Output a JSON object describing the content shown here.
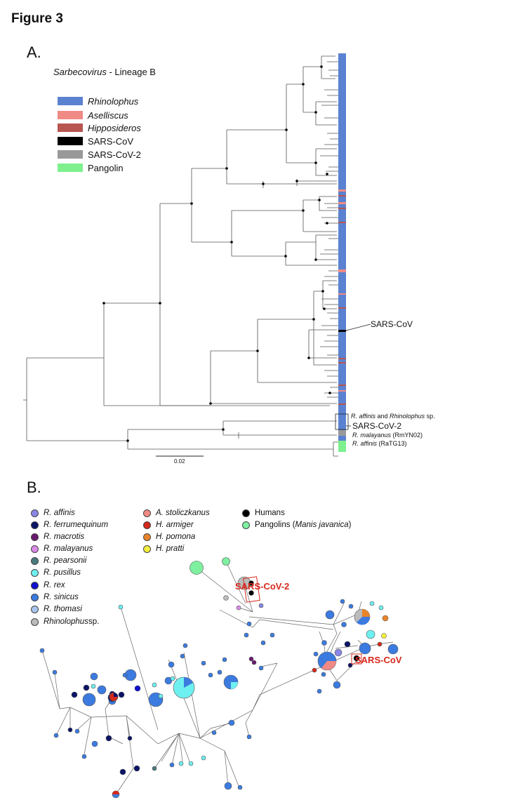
{
  "figure_title": "Figure 3",
  "panel_a": {
    "letter": "A.",
    "title_italic": "Sarbecovirus",
    "title_rest": " - Lineage B",
    "legend": [
      {
        "label": "Rhinolophus",
        "italic": true,
        "color": "#5b82d0"
      },
      {
        "label": "Aselliscus",
        "italic": true,
        "color": "#f08a85"
      },
      {
        "label": "Hipposideros",
        "italic": true,
        "color": "#b85550"
      },
      {
        "label": "SARS-CoV",
        "italic": false,
        "color": "#000000"
      },
      {
        "label": "SARS-CoV-2",
        "italic": false,
        "color": "#999999"
      },
      {
        "label": "Pangolin",
        "italic": false,
        "color": "#7ef08e"
      }
    ],
    "annotations": {
      "sars_cov": "SARS-CoV",
      "r_affinis_rhino_1": "R. affinis",
      "r_affinis_rhino_2": " and ",
      "r_affinis_rhino_3": "Rhinolophus",
      "r_affinis_rhino_4": " sp.",
      "sars_cov_2": "SARS-CoV-2",
      "r_malayanus_1": "R. malayanus",
      "r_malayanus_2": " (RmYN02)",
      "r_affinis_ratg_1": "R. affinis",
      "r_affinis_ratg_2": " (RaTG13)"
    },
    "scale_bar": "0.02"
  },
  "panel_b": {
    "letter": "B.",
    "legend_col1": [
      {
        "label": "R. affinis",
        "color": "#8a86e6"
      },
      {
        "label": "R. ferrumequinum",
        "color": "#0c1466"
      },
      {
        "label": "R. macrotis",
        "color": "#6a1a6e"
      },
      {
        "label": "R. malayanus",
        "color": "#d98be6"
      },
      {
        "label": "R. pearsonii",
        "color": "#4a7a7e"
      },
      {
        "label": "R. pusillus",
        "color": "#6ff0f0"
      },
      {
        "label": "R. rex",
        "color": "#1010d0"
      },
      {
        "label": "R. sinicus",
        "color": "#3b7be0"
      },
      {
        "label": "R. thomasi",
        "color": "#a9c6ec"
      }
    ],
    "legend_col1_last": {
      "italic": "Rhinolophus",
      "rest": " sp.",
      "color": "#bbbbbb"
    },
    "legend_col2": [
      {
        "label": "A. stoliczkanus",
        "color": "#f08a85"
      },
      {
        "label": "H. armiger",
        "color": "#d6281c"
      },
      {
        "label": "H. pomona",
        "color": "#e8852a"
      },
      {
        "label": "H. pratti",
        "color": "#f5f03c"
      }
    ],
    "legend_col3": [
      {
        "label": "Humans",
        "color": "#000000"
      },
      {
        "label_plain": "Pangolins (",
        "label_italic": "Manis javanica",
        "label_end": ")",
        "color": "#7ef0a0"
      }
    ],
    "network_labels": {
      "sars_cov_2": "SARS-CoV-2",
      "sars_cov": "SARS-CoV"
    }
  }
}
